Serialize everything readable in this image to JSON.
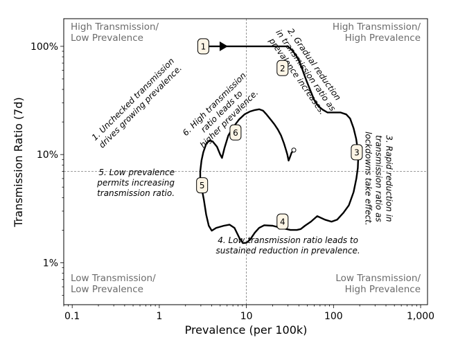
{
  "chart_data": {
    "type": "line",
    "title": "",
    "xlabel": "Prevalence (per 100k)",
    "ylabel": "Transmission Ratio (7d)",
    "xscale": "log",
    "yscale": "log",
    "xlim": [
      0.08,
      1200
    ],
    "ylim": [
      0.0041,
      1.8
    ],
    "xticks": [
      {
        "value": 0.1,
        "label": "0.1"
      },
      {
        "value": 1,
        "label": "1"
      },
      {
        "value": 10,
        "label": "10"
      },
      {
        "value": 100,
        "label": "100"
      },
      {
        "value": 1000,
        "label": "1,000"
      }
    ],
    "yticks": [
      {
        "value": 0.01,
        "label": "1%"
      },
      {
        "value": 0.1,
        "label": "10%"
      },
      {
        "value": 1,
        "label": "100%"
      }
    ],
    "reference_lines": {
      "x": 10,
      "y": 0.07
    },
    "quadrant_labels": [
      {
        "corner": "top-left",
        "lines": [
          "High Transmission/",
          "Low Prevalence"
        ]
      },
      {
        "corner": "top-right",
        "lines": [
          "High Transmission/",
          "High Prevalence"
        ]
      },
      {
        "corner": "bottom-left",
        "lines": [
          "Low Transmission/",
          "Low Prevalence"
        ]
      },
      {
        "corner": "bottom-right",
        "lines": [
          "Low Transmission/",
          "High Prevalence"
        ]
      }
    ],
    "markers": [
      {
        "label": "1",
        "x": 3.2,
        "y": 1.0
      },
      {
        "label": "2",
        "x": 26,
        "y": 0.63
      },
      {
        "label": "3",
        "x": 185,
        "y": 0.105
      },
      {
        "label": "4",
        "x": 26,
        "y": 0.024
      },
      {
        "label": "5",
        "x": 3.1,
        "y": 0.052
      },
      {
        "label": "6",
        "x": 7.5,
        "y": 0.16
      }
    ],
    "annotations": [
      {
        "lines": [
          "1. Unchecked transmission",
          "drives growing prevalence."
        ],
        "x": 0.55,
        "y": 0.3,
        "rotation": -45,
        "anchor": "middle"
      },
      {
        "lines": [
          "2. Gradual reduction",
          "in transmission ratio as",
          "prevalence increases."
        ],
        "x": 48,
        "y": 0.6,
        "rotation": 55,
        "anchor": "middle"
      },
      {
        "lines": [
          "3. Rapid reduction in",
          "transmission ratio as",
          "lockdowns take effect."
        ],
        "x": 330,
        "y": 0.06,
        "rotation": 90,
        "anchor": "middle"
      },
      {
        "lines": [
          "4. Low transmission ratio leads to",
          "sustained reduction in prevalence."
        ],
        "x": 30,
        "y": 0.0145,
        "rotation": 0,
        "anchor": "middle"
      },
      {
        "lines": [
          "5. Low prevalence",
          "permits increasing",
          "transmission ratio."
        ],
        "x": 1.5,
        "y": 0.055,
        "rotation": 0,
        "anchor": "end"
      },
      {
        "lines": [
          "6. High transmission",
          "ratio leads to",
          "higher prevalence."
        ],
        "x": 5.2,
        "y": 0.25,
        "rotation": -45,
        "anchor": "middle"
      }
    ],
    "series": [
      {
        "color": "#000000",
        "arrow_at": {
          "x": 5.6,
          "y": 1.0
        },
        "points": [
          [
            3.0,
            1.0
          ],
          [
            4.5,
            1.0
          ],
          [
            7,
            1.0
          ],
          [
            12,
            1.0
          ],
          [
            20,
            1.0
          ],
          [
            30,
            1.0
          ],
          [
            33,
            0.93
          ],
          [
            37,
            0.83
          ],
          [
            40,
            0.74
          ],
          [
            43,
            0.64
          ],
          [
            46,
            0.55
          ],
          [
            50,
            0.46
          ],
          [
            55,
            0.38
          ],
          [
            60,
            0.32
          ],
          [
            67,
            0.28
          ],
          [
            75,
            0.26
          ],
          [
            85,
            0.245
          ],
          [
            100,
            0.245
          ],
          [
            120,
            0.245
          ],
          [
            140,
            0.235
          ],
          [
            155,
            0.215
          ],
          [
            170,
            0.175
          ],
          [
            182,
            0.14
          ],
          [
            190,
            0.11
          ],
          [
            192,
            0.09
          ],
          [
            190,
            0.075
          ],
          [
            183,
            0.06
          ],
          [
            170,
            0.045
          ],
          [
            150,
            0.034
          ],
          [
            130,
            0.029
          ],
          [
            110,
            0.025
          ],
          [
            95,
            0.024
          ],
          [
            80,
            0.025
          ],
          [
            65,
            0.027
          ],
          [
            55,
            0.024
          ],
          [
            47,
            0.022
          ],
          [
            42,
            0.0205
          ],
          [
            38,
            0.0201
          ],
          [
            32,
            0.0201
          ],
          [
            25,
            0.021
          ],
          [
            20,
            0.022
          ],
          [
            16,
            0.0222
          ],
          [
            14,
            0.021
          ],
          [
            12.5,
            0.019
          ],
          [
            11,
            0.0163
          ],
          [
            10,
            0.0153
          ],
          [
            9.1,
            0.0152
          ],
          [
            8.3,
            0.017
          ],
          [
            7.3,
            0.021
          ],
          [
            6.4,
            0.0225
          ],
          [
            5.5,
            0.022
          ],
          [
            4.5,
            0.021
          ],
          [
            4.0,
            0.0198
          ],
          [
            3.7,
            0.022
          ],
          [
            3.45,
            0.028
          ],
          [
            3.25,
            0.038
          ],
          [
            3.05,
            0.05
          ],
          [
            2.95,
            0.06
          ],
          [
            2.95,
            0.07
          ],
          [
            3.05,
            0.088
          ],
          [
            3.2,
            0.105
          ],
          [
            3.45,
            0.125
          ],
          [
            3.75,
            0.135
          ],
          [
            4.1,
            0.132
          ],
          [
            4.6,
            0.118
          ],
          [
            5.0,
            0.1
          ],
          [
            5.25,
            0.093
          ],
          [
            5.6,
            0.115
          ],
          [
            6.2,
            0.15
          ],
          [
            7.1,
            0.18
          ],
          [
            8.2,
            0.21
          ],
          [
            9.5,
            0.235
          ],
          [
            11,
            0.25
          ],
          [
            12.5,
            0.258
          ],
          [
            14,
            0.262
          ],
          [
            15.5,
            0.255
          ],
          [
            17,
            0.235
          ],
          [
            19,
            0.21
          ],
          [
            21,
            0.19
          ],
          [
            23,
            0.17
          ],
          [
            25,
            0.15
          ],
          [
            27,
            0.127
          ],
          [
            28.5,
            0.11
          ],
          [
            29.5,
            0.1
          ],
          [
            30.5,
            0.088
          ],
          [
            31.5,
            0.094
          ],
          [
            33,
            0.104
          ],
          [
            35,
            0.11
          ]
        ]
      }
    ]
  }
}
